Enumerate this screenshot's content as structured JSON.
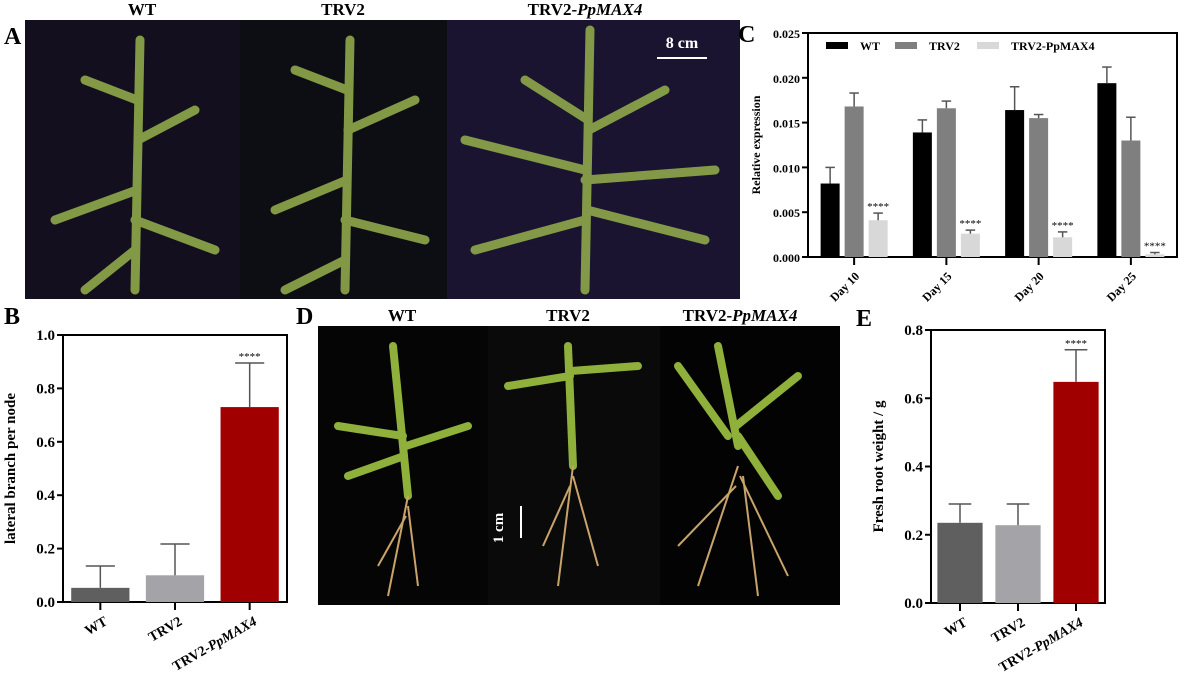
{
  "panels": {
    "A": {
      "label": "A",
      "titles": [
        "WT",
        "TRV2",
        "TRV2-",
        "PpMAX4"
      ],
      "scale_bar": "8 cm"
    },
    "B": {
      "label": "B"
    },
    "C": {
      "label": "C"
    },
    "D": {
      "label": "D",
      "titles": [
        "WT",
        "TRV2",
        "TRV2-",
        "PpMAX4"
      ],
      "scale_bar": "1 cm"
    },
    "E": {
      "label": "E"
    }
  },
  "colors": {
    "WT": "#5f5f5f",
    "TRV2": "#a3a3a8",
    "PpMAX4": "#a00000",
    "C_WT": "#000000",
    "C_TRV2": "#7f7f7f",
    "C_PpMAX4": "#d8d8d8"
  },
  "chart_data": [
    {
      "id": "B",
      "type": "bar",
      "categories": [
        "WT",
        "TRV2",
        "TRV2-PpMAX4"
      ],
      "values": [
        0.053,
        0.1,
        0.73
      ],
      "error_upper": [
        0.135,
        0.217,
        0.895
      ],
      "significance": [
        "",
        "",
        "****"
      ],
      "ylabel": "lateral branch per node",
      "ylim": [
        0,
        1.0
      ],
      "yticks": [
        "0.0",
        "0.2",
        "0.4",
        "0.6",
        "0.8",
        "1.0"
      ]
    },
    {
      "id": "C",
      "type": "bar",
      "categories": [
        "Day 10",
        "Day 15",
        "Day 20",
        "Day 25"
      ],
      "series": [
        {
          "name": "WT",
          "values": [
            0.0082,
            0.0139,
            0.0164,
            0.0194
          ],
          "error_upper": [
            0.01,
            0.0153,
            0.019,
            0.0212
          ]
        },
        {
          "name": "TRV2",
          "values": [
            0.0168,
            0.0166,
            0.0155,
            0.013
          ],
          "error_upper": [
            0.0183,
            0.0174,
            0.0159,
            0.0156
          ]
        },
        {
          "name": "TRV2-PpMAX4",
          "values": [
            0.0041,
            0.0026,
            0.0022,
            0.0003
          ],
          "error_upper": [
            0.0049,
            0.003,
            0.0028,
            0.0005
          ]
        }
      ],
      "significance": "****",
      "ylabel": "Relative expression",
      "ylim": [
        0,
        0.025
      ],
      "yticks": [
        "0.000",
        "0.005",
        "0.010",
        "0.015",
        "0.020",
        "0.025"
      ],
      "legend": "top"
    },
    {
      "id": "E",
      "type": "bar",
      "categories": [
        "WT",
        "TRV2",
        "TRV2-PpMAX4"
      ],
      "values": [
        0.235,
        0.228,
        0.648
      ],
      "error_upper": [
        0.29,
        0.29,
        0.742
      ],
      "significance": [
        "",
        "",
        "****"
      ],
      "ylabel": "Fresh root weight  / g",
      "ylim": [
        0,
        0.8
      ],
      "yticks": [
        "0.0",
        "0.2",
        "0.4",
        "0.6",
        "0.8"
      ]
    }
  ]
}
